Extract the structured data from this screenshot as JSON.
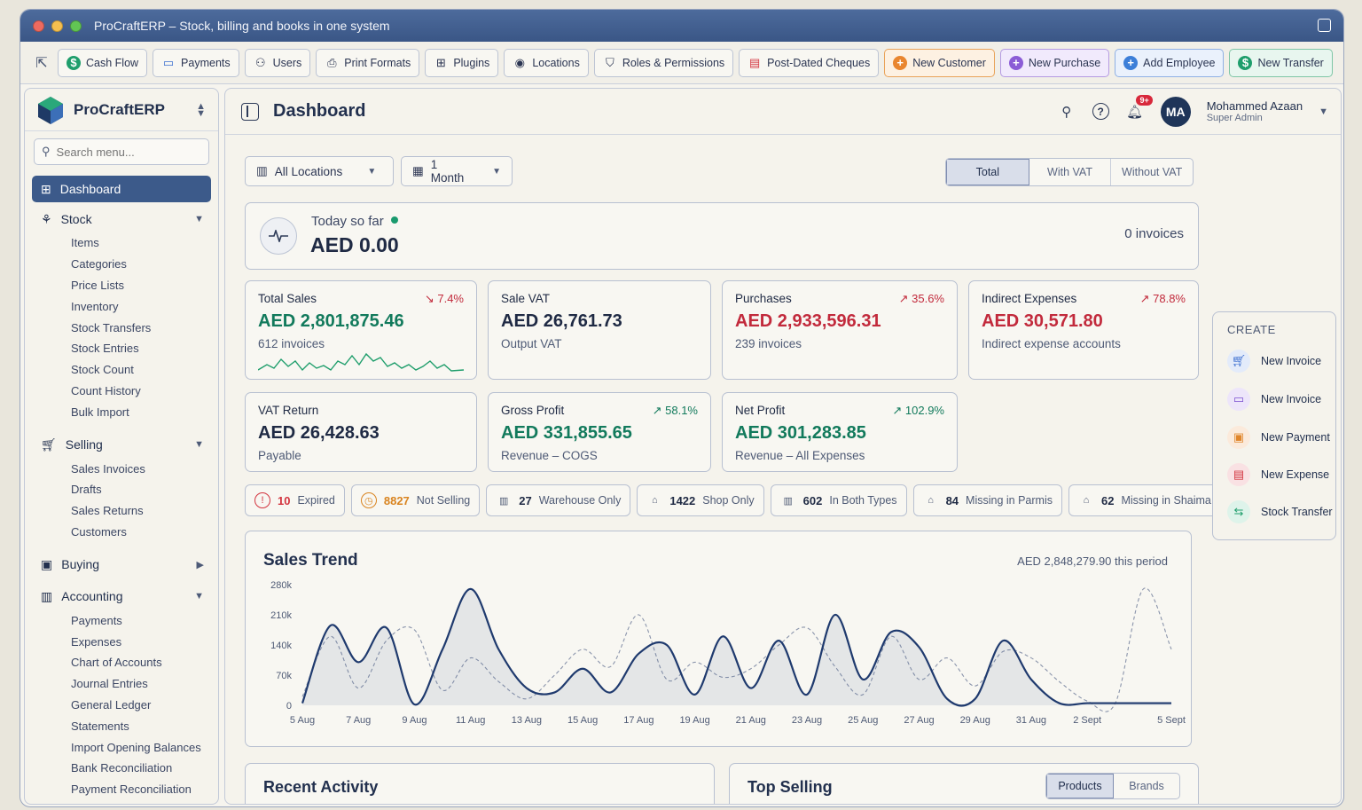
{
  "window": {
    "title": "ProCraftERP – Stock, billing and books in one system"
  },
  "toolbar": {
    "items": [
      {
        "label": "Cash Flow",
        "icon": "dollar-icon"
      },
      {
        "label": "Payments",
        "icon": "card-icon"
      },
      {
        "label": "Users",
        "icon": "user-icon"
      },
      {
        "label": "Print Formats",
        "icon": "printer-icon"
      },
      {
        "label": "Plugins",
        "icon": "plugin-icon"
      },
      {
        "label": "Locations",
        "icon": "location-icon"
      },
      {
        "label": "Roles & Permissions",
        "icon": "shield-icon"
      },
      {
        "label": "Post-Dated Cheques",
        "icon": "cheque-icon"
      },
      {
        "label": "New Customer",
        "icon": "customer-icon",
        "accent": "#e9862f"
      },
      {
        "label": "New Purchase",
        "icon": "purchase-icon",
        "accent": "#8b5cd6"
      },
      {
        "label": "Add Employee",
        "icon": "employee-icon",
        "accent": "#3c7fd8"
      },
      {
        "label": "New Transfer",
        "icon": "transfer-icon",
        "accent": "#1f9e6c"
      }
    ]
  },
  "sidebar": {
    "brand": "ProCraftERP",
    "search_placeholder": "Search menu...",
    "dashboard": "Dashboard",
    "stock": {
      "label": "Stock",
      "items": [
        "Items",
        "Categories",
        "Price Lists",
        "Inventory",
        "Stock Transfers",
        "Stock Entries",
        "Stock Count",
        "Count History",
        "Bulk Import"
      ]
    },
    "selling": {
      "label": "Selling",
      "items": [
        "Sales Invoices",
        "Drafts",
        "Sales Returns",
        "Customers"
      ]
    },
    "buying": {
      "label": "Buying"
    },
    "accounting": {
      "label": "Accounting",
      "items": [
        "Payments",
        "Expenses",
        "Chart of Accounts",
        "Journal Entries",
        "General Ledger",
        "Statements",
        "Import Opening Balances",
        "Bank Reconciliation",
        "Payment Reconciliation"
      ]
    }
  },
  "header": {
    "title": "Dashboard",
    "notifications": "9+",
    "user": {
      "initials": "MA",
      "name": "Mohammed Azaan",
      "role": "Super Admin"
    }
  },
  "filters": {
    "location": "All Locations",
    "period": "1 Month",
    "vat_modes": [
      "Total",
      "With VAT",
      "Without VAT"
    ],
    "vat_selected": "Total"
  },
  "today": {
    "label": "Today so far",
    "value": "AED 0.00",
    "count": "0 invoices"
  },
  "cards": {
    "total_sales": {
      "label": "Total Sales",
      "value": "AED 2,801,875.46",
      "sub": "612 invoices",
      "change": "↘ 7.4%"
    },
    "sale_vat": {
      "label": "Sale VAT",
      "value": "AED 26,761.73",
      "sub": "Output VAT"
    },
    "purchases": {
      "label": "Purchases",
      "value": "AED 2,933,596.31",
      "sub": "239 invoices",
      "change": "↗ 35.6%"
    },
    "indirect": {
      "label": "Indirect Expenses",
      "value": "AED 30,571.80",
      "sub": "Indirect expense accounts",
      "change": "↗ 78.8%"
    },
    "vat_return": {
      "label": "VAT Return",
      "value": "AED 26,428.63",
      "sub": "Payable"
    },
    "gross_profit": {
      "label": "Gross Profit",
      "value": "AED 331,855.65",
      "sub": "Revenue – COGS",
      "change": "↗ 58.1%"
    },
    "net_profit": {
      "label": "Net Profit",
      "value": "AED 301,283.85",
      "sub": "Revenue – All Expenses",
      "change": "↗ 102.9%"
    }
  },
  "chips": [
    {
      "count": "10",
      "label": "Expired",
      "color": "#d3343f"
    },
    {
      "count": "8827",
      "label": "Not Selling",
      "color": "#d98420"
    },
    {
      "count": "27",
      "label": "Warehouse Only",
      "color": "#5a6682"
    },
    {
      "count": "1422",
      "label": "Shop Only",
      "color": "#5a6682"
    },
    {
      "count": "602",
      "label": "In Both Types",
      "color": "#5a6682"
    },
    {
      "count": "84",
      "label": "Missing in Parmis",
      "color": "#5a6682"
    },
    {
      "count": "62",
      "label": "Missing in Shaima",
      "color": "#5a6682"
    }
  ],
  "sales_trend": {
    "title": "Sales Trend",
    "total": "AED 2,848,279.90 this period"
  },
  "chart_data": {
    "type": "line",
    "title": "Sales Trend",
    "x": [
      "5 Aug",
      "6 Aug",
      "7 Aug",
      "8 Aug",
      "9 Aug",
      "10 Aug",
      "11 Aug",
      "12 Aug",
      "13 Aug",
      "14 Aug",
      "15 Aug",
      "16 Aug",
      "17 Aug",
      "18 Aug",
      "19 Aug",
      "20 Aug",
      "21 Aug",
      "22 Aug",
      "23 Aug",
      "24 Aug",
      "25 Aug",
      "26 Aug",
      "27 Aug",
      "28 Aug",
      "29 Aug",
      "30 Aug",
      "31 Aug",
      "1 Sept",
      "2 Sept",
      "3 Sept",
      "4 Sept",
      "5 Sept"
    ],
    "x_tick_labels": [
      "5 Aug",
      "7 Aug",
      "9 Aug",
      "11 Aug",
      "13 Aug",
      "15 Aug",
      "17 Aug",
      "19 Aug",
      "21 Aug",
      "23 Aug",
      "25 Aug",
      "27 Aug",
      "29 Aug",
      "31 Aug",
      "2 Sept",
      "5 Sept"
    ],
    "y_ticks": [
      "0",
      "70k",
      "140k",
      "210k",
      "280k"
    ],
    "ylim": [
      0,
      280000
    ],
    "series": [
      {
        "values": [
          5000,
          185000,
          100000,
          180000,
          2000,
          130000,
          270000,
          130000,
          40000,
          30000,
          85000,
          30000,
          120000,
          140000,
          25000,
          160000,
          40000,
          150000,
          25000,
          210000,
          60000,
          170000,
          135000,
          15000,
          15000,
          150000,
          60000,
          5000,
          5000,
          5000,
          5000,
          5000
        ]
      },
      {
        "values": [
          20000,
          160000,
          40000,
          150000,
          175000,
          35000,
          110000,
          55000,
          15000,
          70000,
          130000,
          90000,
          210000,
          60000,
          100000,
          65000,
          85000,
          140000,
          180000,
          90000,
          25000,
          160000,
          60000,
          110000,
          45000,
          125000,
          110000,
          55000,
          10000,
          5000,
          270000,
          130000
        ]
      }
    ]
  },
  "recent_activity": {
    "title": "Recent Activity"
  },
  "top_selling": {
    "title": "Top Selling",
    "tabs": [
      "Products",
      "Brands"
    ]
  },
  "create": {
    "title": "CREATE",
    "items": [
      {
        "label": "New Invoice",
        "color": "#3c6fd0"
      },
      {
        "label": "New Invoice",
        "color": "#7a4fcf"
      },
      {
        "label": "New Payment",
        "color": "#e0852a"
      },
      {
        "label": "New Expense",
        "color": "#d3343f"
      },
      {
        "label": "Stock Transfer",
        "color": "#1f9e6c"
      }
    ]
  }
}
